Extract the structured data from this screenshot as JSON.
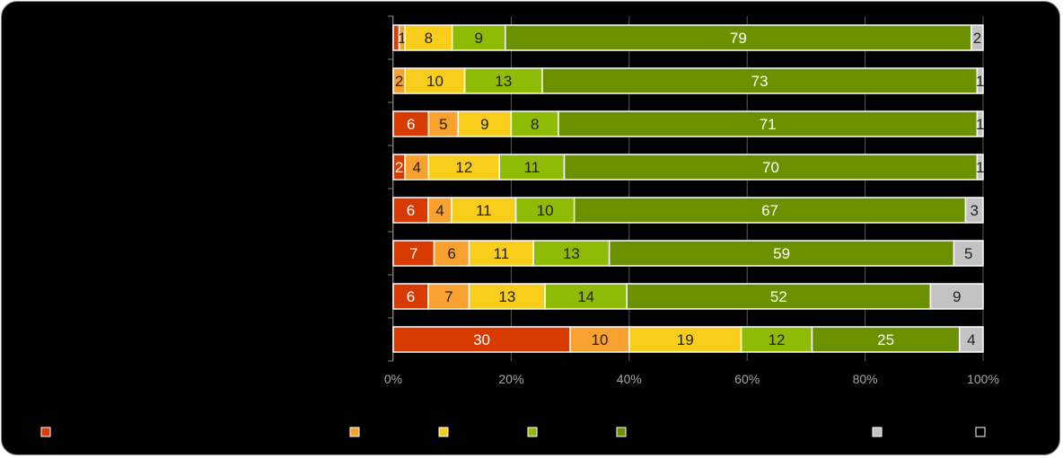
{
  "chart_data": {
    "type": "bar",
    "orientation": "horizontal",
    "stacked": "percent",
    "xlim": [
      0,
      100
    ],
    "x_ticks": [
      "0%",
      "20%",
      "40%",
      "60%",
      "80%",
      "100%"
    ],
    "grid": true,
    "legend_position": "bottom",
    "series": [
      {
        "color": "#d83b01",
        "values": [
          1,
          0,
          6,
          2,
          6,
          7,
          6,
          30
        ]
      },
      {
        "color": "#f8a12e",
        "values": [
          1,
          2,
          5,
          4,
          4,
          6,
          7,
          10
        ]
      },
      {
        "color": "#f9cd1b",
        "values": [
          8,
          10,
          9,
          12,
          11,
          11,
          13,
          19
        ]
      },
      {
        "color": "#8dbb06",
        "values": [
          9,
          13,
          8,
          11,
          10,
          13,
          14,
          12
        ]
      },
      {
        "color": "#6b9100",
        "values": [
          79,
          73,
          71,
          70,
          67,
          59,
          52,
          25
        ]
      },
      {
        "color": "#c3c3c3",
        "values": [
          2,
          1,
          1,
          1,
          3,
          5,
          9,
          4
        ]
      },
      {
        "color": "#000000",
        "values": [
          0,
          0,
          0,
          0,
          0,
          0,
          0,
          0
        ]
      }
    ],
    "data_labels": [
      [
        "",
        "1",
        "8",
        "9",
        "79",
        "2",
        ""
      ],
      [
        "",
        "2",
        "10",
        "13",
        "73",
        "1",
        ""
      ],
      [
        "6",
        "5",
        "9",
        "8",
        "71",
        "1",
        ""
      ],
      [
        "2",
        "4",
        "12",
        "11",
        "70",
        "1",
        ""
      ],
      [
        "6",
        "4",
        "11",
        "10",
        "67",
        "3",
        ""
      ],
      [
        "7",
        "6",
        "11",
        "13",
        "59",
        "5",
        ""
      ],
      [
        "6",
        "7",
        "13",
        "14",
        "52",
        "9",
        ""
      ],
      [
        "30",
        "10",
        "19",
        "12",
        "25",
        "4",
        ""
      ]
    ],
    "label_colors": [
      "#ffffff",
      "#222222",
      "#222222",
      "#222222",
      "#ffffff",
      "#222222",
      "#ffffff"
    ]
  }
}
